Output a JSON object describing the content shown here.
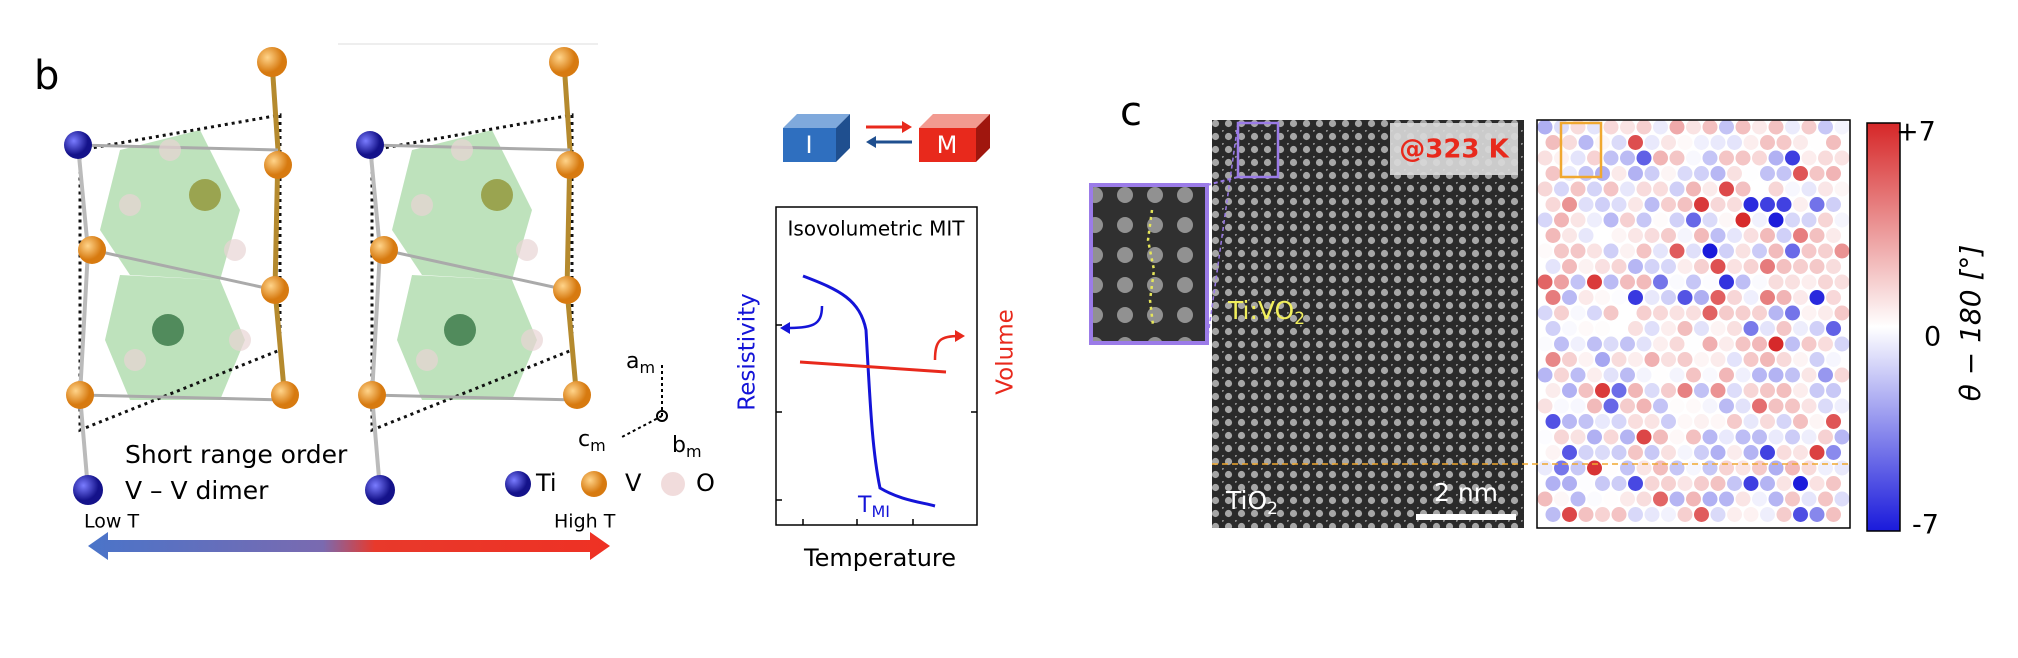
{
  "panel_b": {
    "label": "b",
    "note_line1": "Short range order",
    "note_line2": "V – V dimer",
    "atoms": [
      "Ti",
      "V",
      "O"
    ],
    "axes": [
      {
        "text": "a",
        "sub": "m"
      },
      {
        "text": "b",
        "sub": "m"
      },
      {
        "text": "c",
        "sub": "m"
      }
    ],
    "arrow_left": "Low T",
    "arrow_right": "High T",
    "states": [
      "I",
      "M"
    ],
    "plot": {
      "title": "Isovolumetric MIT",
      "y_left": "Resistivity",
      "y_right": "Volume",
      "x_label": "Temperature",
      "transition": {
        "text": "T",
        "sub": "MI"
      }
    }
  },
  "panel_c": {
    "label": "c",
    "temperature": "@323 K",
    "film": {
      "text": "Ti:VO",
      "sub": "2"
    },
    "substrate": {
      "text": "TiO",
      "sub": "2"
    },
    "scale_bar": "2 nm",
    "colorbar": {
      "top": "+7",
      "middle": "0",
      "bottom": "-7",
      "title": "θ − 180 [°]"
    }
  }
}
